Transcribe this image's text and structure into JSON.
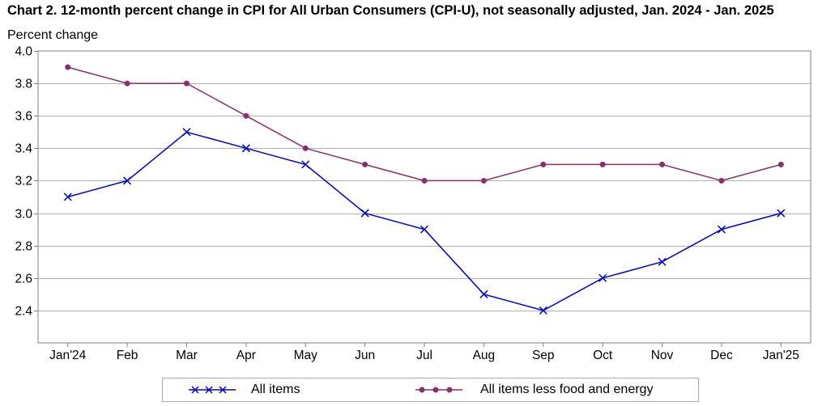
{
  "title": "Chart 2. 12-month percent change in CPI for All Urban Consumers (CPI-U), not seasonally adjusted, Jan. 2024 - Jan. 2025",
  "unit_label": "Percent change",
  "colors": {
    "all_items": "#0000e0",
    "core": "#8b2f6b",
    "grid": "#b0b0b0",
    "axis": "#808080"
  },
  "legend": {
    "all_items_label": "All items",
    "core_label": "All items less food and energy"
  },
  "chart_data": {
    "type": "line",
    "title": "Chart 2. 12-month percent change in CPI for All Urban Consumers (CPI-U), not seasonally adjusted, Jan. 2024 - Jan. 2025",
    "ylabel": "Percent change",
    "xlabel": "",
    "categories": [
      "Jan'24",
      "Feb",
      "Mar",
      "Apr",
      "May",
      "Jun",
      "Jul",
      "Aug",
      "Sep",
      "Oct",
      "Nov",
      "Dec",
      "Jan'25"
    ],
    "ylim": [
      2.2,
      4.0
    ],
    "yticks": [
      "4.0",
      "3.8",
      "3.6",
      "3.4",
      "3.2",
      "3.0",
      "2.8",
      "2.6",
      "2.4"
    ],
    "grid": true,
    "legend_position": "bottom",
    "series": [
      {
        "name": "All items",
        "marker": "x",
        "values": [
          3.1,
          3.2,
          3.5,
          3.4,
          3.3,
          3.0,
          2.9,
          2.5,
          2.4,
          2.6,
          2.7,
          2.9,
          3.0
        ]
      },
      {
        "name": "All items less food and energy",
        "marker": "circle",
        "values": [
          3.9,
          3.8,
          3.8,
          3.6,
          3.4,
          3.3,
          3.2,
          3.2,
          3.3,
          3.3,
          3.3,
          3.2,
          3.3
        ]
      }
    ]
  }
}
